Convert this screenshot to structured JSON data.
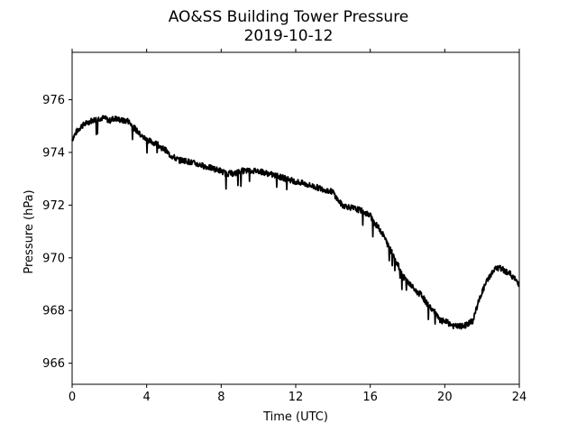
{
  "chart_data": {
    "type": "line",
    "title": "AO&SS Building Tower Pressure",
    "subtitle": "2019-10-12",
    "xlabel": "Time (UTC)",
    "ylabel": "Pressure (hPa)",
    "xlim": [
      0,
      24
    ],
    "ylim": [
      965.2,
      977.8
    ],
    "xticks": [
      0,
      4,
      8,
      12,
      16,
      20,
      24
    ],
    "yticks": [
      966,
      968,
      970,
      972,
      974,
      976
    ],
    "grid": false,
    "line_color": "#000000",
    "series": [
      {
        "x": [
          0,
          0.25,
          0.5,
          0.75,
          1,
          1.25,
          1.5,
          1.75,
          2,
          2.25,
          2.5,
          2.75,
          3,
          3.25,
          3.5,
          3.75,
          4,
          4.25,
          4.5,
          4.75,
          5,
          5.25,
          5.5,
          5.75,
          6,
          6.5,
          7,
          7.5,
          8,
          8.25,
          8.5,
          8.75,
          9,
          9.5,
          10,
          10.5,
          11,
          11.5,
          12,
          12.5,
          13,
          13.5,
          14,
          14.25,
          14.5,
          15,
          15.5,
          16,
          16.25,
          16.5,
          16.75,
          17,
          17.25,
          17.5,
          17.75,
          18,
          18.25,
          18.5,
          18.75,
          19,
          19.25,
          19.5,
          19.75,
          20,
          20.25,
          20.5,
          20.75,
          21,
          21.25,
          21.5,
          21.75,
          22,
          22.25,
          22.5,
          22.75,
          23,
          23.25,
          23.5,
          23.75,
          24
        ],
        "y": [
          974.5,
          974.8,
          975.0,
          975.1,
          975.2,
          975.25,
          975.3,
          975.3,
          975.2,
          975.3,
          975.25,
          975.2,
          975.2,
          975.0,
          974.8,
          974.6,
          974.5,
          974.4,
          974.35,
          974.2,
          974.1,
          973.9,
          973.8,
          973.7,
          973.7,
          973.6,
          973.5,
          973.4,
          973.3,
          973.2,
          973.2,
          973.2,
          973.3,
          973.3,
          973.3,
          973.2,
          973.1,
          973.0,
          972.9,
          972.8,
          972.7,
          972.6,
          972.5,
          972.2,
          972.0,
          971.9,
          971.8,
          971.6,
          971.3,
          971.1,
          970.8,
          970.4,
          970.1,
          969.7,
          969.3,
          969.1,
          968.9,
          968.7,
          968.6,
          968.3,
          968.1,
          967.9,
          967.6,
          967.6,
          967.5,
          967.4,
          967.4,
          967.4,
          967.5,
          967.6,
          968.2,
          968.7,
          969.1,
          969.4,
          969.6,
          969.6,
          969.5,
          969.4,
          969.2,
          969.0
        ]
      }
    ]
  }
}
